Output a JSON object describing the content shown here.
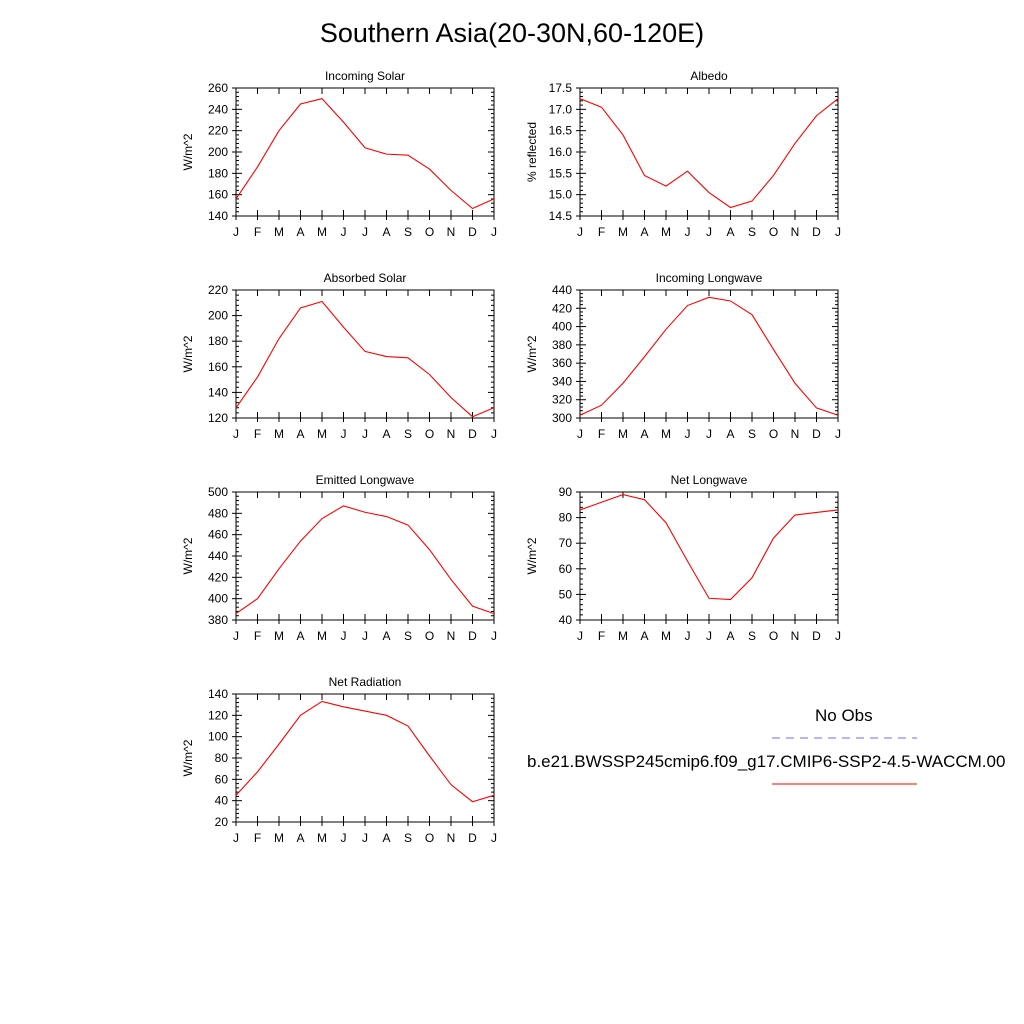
{
  "page": {
    "title": "Southern Asia(20-30N,60-120E)"
  },
  "colors": {
    "model_line": "#ff0000",
    "obs_line": "#6a6aff",
    "axis": "#000000"
  },
  "legend": {
    "obs_label": "No Obs",
    "model_label": "b.e21.BWSSP245cmip6.f09_g17.CMIP6-SSP2-4.5-WACCM.00"
  },
  "chart_data": [
    {
      "type": "line",
      "title": "Incoming Solar",
      "ylabel": "W/m^2",
      "categories": [
        "J",
        "F",
        "M",
        "A",
        "M",
        "J",
        "J",
        "A",
        "S",
        "O",
        "N",
        "D",
        "J"
      ],
      "ylim": [
        140,
        260
      ],
      "yticks": [
        "140",
        "160",
        "180",
        "200",
        "220",
        "240",
        "260"
      ],
      "series": [
        {
          "values": [
            156,
            186,
            220,
            245,
            250,
            228,
            204,
            198,
            197,
            184,
            164,
            147,
            156
          ]
        }
      ]
    },
    {
      "type": "line",
      "title": "Albedo",
      "ylabel": "% reflected",
      "categories": [
        "J",
        "F",
        "M",
        "A",
        "M",
        "J",
        "J",
        "A",
        "S",
        "O",
        "N",
        "D",
        "J"
      ],
      "ylim": [
        14.5,
        17.5
      ],
      "yticks": [
        "14.5",
        "15.0",
        "15.5",
        "16.0",
        "16.5",
        "17.0",
        "17.5"
      ],
      "series": [
        {
          "values": [
            17.25,
            17.05,
            16.4,
            15.45,
            15.2,
            15.55,
            15.05,
            14.7,
            14.85,
            15.45,
            16.2,
            16.85,
            17.25
          ]
        }
      ]
    },
    {
      "type": "line",
      "title": "Absorbed Solar",
      "ylabel": "W/m^2",
      "categories": [
        "J",
        "F",
        "M",
        "A",
        "M",
        "J",
        "J",
        "A",
        "S",
        "O",
        "N",
        "D",
        "J"
      ],
      "ylim": [
        120,
        220
      ],
      "yticks": [
        "120",
        "140",
        "160",
        "180",
        "200",
        "220"
      ],
      "series": [
        {
          "values": [
            128,
            152,
            182,
            206,
            211,
            191,
            172,
            168,
            167,
            154,
            136,
            121,
            128
          ]
        }
      ]
    },
    {
      "type": "line",
      "title": "Incoming Longwave",
      "ylabel": "W/m^2",
      "categories": [
        "J",
        "F",
        "M",
        "A",
        "M",
        "J",
        "J",
        "A",
        "S",
        "O",
        "N",
        "D",
        "J"
      ],
      "ylim": [
        300,
        440
      ],
      "yticks": [
        "300",
        "320",
        "340",
        "360",
        "380",
        "400",
        "420",
        "440"
      ],
      "series": [
        {
          "values": [
            303,
            314,
            338,
            367,
            397,
            423,
            432,
            428,
            413,
            375,
            338,
            311,
            303
          ]
        }
      ]
    },
    {
      "type": "line",
      "title": "Emitted Longwave",
      "ylabel": "W/m^2",
      "categories": [
        "J",
        "F",
        "M",
        "A",
        "M",
        "J",
        "J",
        "A",
        "S",
        "O",
        "N",
        "D",
        "J"
      ],
      "ylim": [
        380,
        500
      ],
      "yticks": [
        "380",
        "400",
        "420",
        "440",
        "460",
        "480",
        "500"
      ],
      "series": [
        {
          "values": [
            386,
            400,
            428,
            454,
            475,
            487,
            481,
            477,
            469,
            446,
            418,
            393,
            386
          ]
        }
      ]
    },
    {
      "type": "line",
      "title": "Net Longwave",
      "ylabel": "W/m^2",
      "categories": [
        "J",
        "F",
        "M",
        "A",
        "M",
        "J",
        "J",
        "A",
        "S",
        "O",
        "N",
        "D",
        "J"
      ],
      "ylim": [
        40,
        90
      ],
      "yticks": [
        "40",
        "50",
        "60",
        "70",
        "80",
        "90"
      ],
      "series": [
        {
          "values": [
            83,
            86,
            89,
            87,
            78,
            63,
            48.5,
            48,
            56.5,
            72,
            81,
            82,
            83
          ]
        }
      ]
    },
    {
      "type": "line",
      "title": "Net Radiation",
      "ylabel": "W/m^2",
      "categories": [
        "J",
        "F",
        "M",
        "A",
        "M",
        "J",
        "J",
        "A",
        "S",
        "O",
        "N",
        "D",
        "J"
      ],
      "ylim": [
        20,
        140
      ],
      "yticks": [
        "20",
        "40",
        "60",
        "80",
        "100",
        "120",
        "140"
      ],
      "series": [
        {
          "values": [
            45,
            67,
            93,
            120,
            133,
            128,
            124,
            120,
            110,
            82,
            55,
            39,
            45
          ]
        }
      ]
    }
  ]
}
